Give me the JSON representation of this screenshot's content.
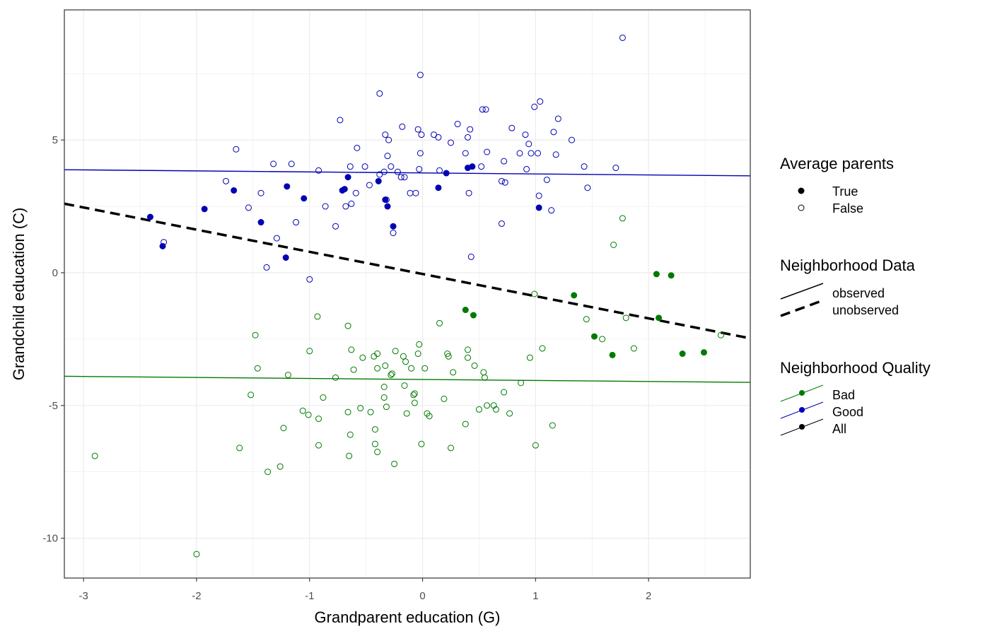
{
  "chart_data": {
    "type": "scatter",
    "xlabel": "Grandparent education (G)",
    "ylabel": "Grandchild education (C)",
    "xlim": [
      -3.17,
      2.9
    ],
    "ylim": [
      -11.5,
      9.9
    ],
    "x_ticks": [
      -3,
      -2,
      -1,
      0,
      1,
      2
    ],
    "x_tick_labels": [
      "-3",
      "-2",
      "-1",
      "0",
      "1",
      "2"
    ],
    "y_ticks": [
      -10,
      -5,
      0,
      5
    ],
    "y_tick_labels": [
      "-10",
      "-5",
      "0",
      "5"
    ],
    "grid": true,
    "legend_position": "right",
    "colors": {
      "good": "#0000b3",
      "bad": "#007a00",
      "all": "#000000",
      "panel_border": "#333333",
      "grid": "#ebebeb"
    },
    "legends": {
      "average_parents": {
        "title": "Average parents",
        "true_label": "True",
        "false_label": "False"
      },
      "neighborhood_data": {
        "title": "Neighborhood Data",
        "observed_label": "observed",
        "unobserved_label": "unobserved"
      },
      "neighborhood_quality": {
        "title": "Neighborhood Quality",
        "bad_label": "Bad",
        "good_label": "Good",
        "all_label": "All"
      }
    },
    "lines": [
      {
        "group": "Good",
        "style": "observed",
        "x": [
          -3.17,
          2.9
        ],
        "y": [
          3.88,
          3.65
        ]
      },
      {
        "group": "Bad",
        "style": "observed",
        "x": [
          -3.17,
          2.9
        ],
        "y": [
          -3.9,
          -4.13
        ]
      },
      {
        "group": "All",
        "style": "unobserved",
        "x": [
          -3.17,
          2.9
        ],
        "y": [
          2.6,
          -2.47
        ]
      }
    ],
    "series": [
      {
        "group": "Good",
        "average_parents": true,
        "points": [
          [
            -2.41,
            2.1
          ],
          [
            -2.3,
            1.0
          ],
          [
            -1.93,
            2.4
          ],
          [
            -1.67,
            3.1
          ],
          [
            -1.43,
            1.9
          ],
          [
            -1.2,
            3.25
          ],
          [
            -1.21,
            0.57
          ],
          [
            -1.05,
            2.8
          ],
          [
            -0.71,
            3.1
          ],
          [
            -0.69,
            3.15
          ],
          [
            -0.66,
            3.6
          ],
          [
            -0.39,
            3.45
          ],
          [
            -0.33,
            2.75
          ],
          [
            -0.31,
            2.5
          ],
          [
            -0.26,
            1.75
          ],
          [
            0.14,
            3.2
          ],
          [
            0.21,
            3.75
          ],
          [
            0.4,
            3.95
          ],
          [
            0.44,
            4.0
          ],
          [
            1.03,
            2.45
          ]
        ]
      },
      {
        "group": "Good",
        "average_parents": false,
        "points": [
          [
            -2.29,
            1.15
          ],
          [
            -1.74,
            3.45
          ],
          [
            -1.65,
            4.65
          ],
          [
            -1.54,
            2.45
          ],
          [
            -1.43,
            3.0
          ],
          [
            -1.38,
            0.2
          ],
          [
            -1.32,
            4.1
          ],
          [
            -1.29,
            1.3
          ],
          [
            -1.16,
            4.1
          ],
          [
            -1.12,
            1.9
          ],
          [
            -1.0,
            -0.25
          ],
          [
            -0.92,
            3.85
          ],
          [
            -0.86,
            2.5
          ],
          [
            -0.77,
            1.75
          ],
          [
            -0.73,
            5.75
          ],
          [
            -0.68,
            2.5
          ],
          [
            -0.63,
            2.6
          ],
          [
            -0.64,
            4.0
          ],
          [
            -0.59,
            3.0
          ],
          [
            -0.58,
            4.7
          ],
          [
            -0.51,
            4.0
          ],
          [
            -0.47,
            3.3
          ],
          [
            -0.38,
            3.7
          ],
          [
            -0.38,
            6.75
          ],
          [
            -0.34,
            3.8
          ],
          [
            -0.33,
            5.2
          ],
          [
            -0.31,
            4.4
          ],
          [
            -0.3,
            5.0
          ],
          [
            -0.28,
            4.0
          ],
          [
            -0.32,
            2.75
          ],
          [
            -0.26,
            1.5
          ],
          [
            -0.22,
            3.8
          ],
          [
            -0.19,
            3.6
          ],
          [
            -0.18,
            5.5
          ],
          [
            -0.16,
            3.6
          ],
          [
            -0.11,
            3.0
          ],
          [
            -0.06,
            3.0
          ],
          [
            -0.04,
            5.4
          ],
          [
            -0.02,
            7.45
          ],
          [
            -0.01,
            5.2
          ],
          [
            -0.02,
            4.5
          ],
          [
            -0.03,
            3.9
          ],
          [
            0.1,
            5.2
          ],
          [
            0.14,
            5.1
          ],
          [
            0.15,
            3.85
          ],
          [
            0.25,
            4.9
          ],
          [
            0.31,
            5.6
          ],
          [
            0.38,
            4.5
          ],
          [
            0.4,
            5.1
          ],
          [
            0.42,
            5.4
          ],
          [
            0.41,
            3.0
          ],
          [
            0.43,
            0.6
          ],
          [
            0.52,
            4.0
          ],
          [
            0.53,
            6.15
          ],
          [
            0.56,
            6.15
          ],
          [
            0.57,
            4.55
          ],
          [
            0.7,
            1.85
          ],
          [
            0.7,
            3.45
          ],
          [
            0.73,
            3.4
          ],
          [
            0.72,
            4.2
          ],
          [
            0.79,
            5.45
          ],
          [
            0.86,
            4.5
          ],
          [
            0.91,
            5.2
          ],
          [
            0.92,
            3.9
          ],
          [
            0.94,
            4.85
          ],
          [
            0.96,
            4.5
          ],
          [
            0.99,
            6.25
          ],
          [
            1.02,
            4.5
          ],
          [
            1.03,
            2.9
          ],
          [
            1.04,
            6.45
          ],
          [
            1.1,
            3.5
          ],
          [
            1.14,
            2.35
          ],
          [
            1.16,
            5.3
          ],
          [
            1.2,
            5.8
          ],
          [
            1.18,
            4.45
          ],
          [
            1.32,
            5.0
          ],
          [
            1.43,
            4.0
          ],
          [
            1.46,
            3.2
          ],
          [
            1.71,
            3.95
          ],
          [
            1.77,
            8.85
          ]
        ]
      },
      {
        "group": "Bad",
        "average_parents": true,
        "points": [
          [
            0.38,
            -1.4
          ],
          [
            0.45,
            -1.6
          ],
          [
            1.34,
            -0.85
          ],
          [
            1.52,
            -2.4
          ],
          [
            1.68,
            -3.1
          ],
          [
            2.07,
            -0.05
          ],
          [
            2.09,
            -1.7
          ],
          [
            2.2,
            -0.1
          ],
          [
            2.3,
            -3.05
          ],
          [
            2.49,
            -3.0
          ]
        ]
      },
      {
        "group": "Bad",
        "average_parents": false,
        "points": [
          [
            -2.9,
            -6.9
          ],
          [
            -2.0,
            -10.6
          ],
          [
            -1.62,
            -6.6
          ],
          [
            -1.52,
            -4.6
          ],
          [
            -1.48,
            -2.35
          ],
          [
            -1.46,
            -3.6
          ],
          [
            -1.37,
            -7.5
          ],
          [
            -1.26,
            -7.3
          ],
          [
            -1.23,
            -5.85
          ],
          [
            -1.19,
            -3.85
          ],
          [
            -1.06,
            -5.2
          ],
          [
            -1.01,
            -5.35
          ],
          [
            -1.0,
            -2.95
          ],
          [
            -0.93,
            -1.65
          ],
          [
            -0.92,
            -5.5
          ],
          [
            -0.92,
            -6.5
          ],
          [
            -0.88,
            -4.7
          ],
          [
            -0.77,
            -3.95
          ],
          [
            -0.66,
            -2.0
          ],
          [
            -0.66,
            -5.25
          ],
          [
            -0.65,
            -6.9
          ],
          [
            -0.64,
            -6.1
          ],
          [
            -0.63,
            -2.9
          ],
          [
            -0.61,
            -3.65
          ],
          [
            -0.55,
            -5.1
          ],
          [
            -0.53,
            -3.2
          ],
          [
            -0.46,
            -5.25
          ],
          [
            -0.43,
            -3.15
          ],
          [
            -0.42,
            -5.9
          ],
          [
            -0.42,
            -6.45
          ],
          [
            -0.4,
            -3.05
          ],
          [
            -0.4,
            -6.75
          ],
          [
            -0.4,
            -3.6
          ],
          [
            -0.34,
            -4.3
          ],
          [
            -0.34,
            -4.7
          ],
          [
            -0.33,
            -3.5
          ],
          [
            -0.32,
            -5.05
          ],
          [
            -0.28,
            -3.85
          ],
          [
            -0.27,
            -3.8
          ],
          [
            -0.25,
            -7.2
          ],
          [
            -0.24,
            -2.95
          ],
          [
            -0.17,
            -3.15
          ],
          [
            -0.16,
            -4.25
          ],
          [
            -0.15,
            -3.35
          ],
          [
            -0.14,
            -5.3
          ],
          [
            -0.1,
            -3.6
          ],
          [
            -0.08,
            -4.6
          ],
          [
            -0.07,
            -4.9
          ],
          [
            -0.04,
            -3.05
          ],
          [
            -0.03,
            -2.7
          ],
          [
            -0.07,
            -4.55
          ],
          [
            -0.01,
            -6.45
          ],
          [
            0.02,
            -3.6
          ],
          [
            0.04,
            -5.3
          ],
          [
            0.06,
            -5.4
          ],
          [
            0.15,
            -1.9
          ],
          [
            0.19,
            -4.75
          ],
          [
            0.22,
            -3.05
          ],
          [
            0.23,
            -3.15
          ],
          [
            0.25,
            -6.6
          ],
          [
            0.27,
            -3.75
          ],
          [
            0.38,
            -5.7
          ],
          [
            0.4,
            -2.9
          ],
          [
            0.4,
            -3.2
          ],
          [
            0.46,
            -3.5
          ],
          [
            0.5,
            -5.15
          ],
          [
            0.54,
            -3.75
          ],
          [
            0.55,
            -3.95
          ],
          [
            0.57,
            -5.0
          ],
          [
            0.63,
            -5.0
          ],
          [
            0.65,
            -5.15
          ],
          [
            0.72,
            -4.5
          ],
          [
            0.77,
            -5.3
          ],
          [
            0.87,
            -4.15
          ],
          [
            0.95,
            -3.2
          ],
          [
            0.99,
            -0.8
          ],
          [
            1.0,
            -6.5
          ],
          [
            1.06,
            -2.85
          ],
          [
            1.15,
            -5.75
          ],
          [
            1.45,
            -1.75
          ],
          [
            1.59,
            -2.5
          ],
          [
            1.69,
            1.05
          ],
          [
            1.77,
            2.05
          ],
          [
            1.8,
            -1.7
          ],
          [
            1.87,
            -2.85
          ],
          [
            2.64,
            -2.35
          ]
        ]
      }
    ]
  }
}
